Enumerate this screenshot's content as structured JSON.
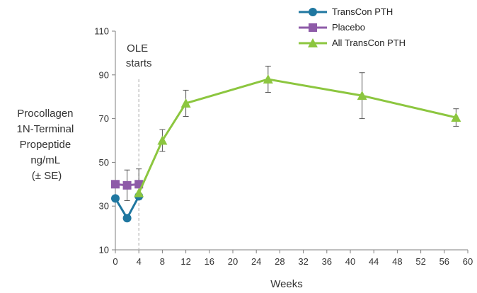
{
  "chart_data": {
    "type": "line",
    "xlabel": "Weeks",
    "ylabel_lines": [
      "Procollagen",
      "1N-Terminal",
      "Propeptide",
      "ng/mL",
      "(± SE)"
    ],
    "xlim": [
      0,
      60
    ],
    "ylim": [
      10,
      110
    ],
    "xticks": [
      "0",
      "4",
      "8",
      "12",
      "16",
      "20",
      "24",
      "28",
      "32",
      "36",
      "40",
      "44",
      "48",
      "52",
      "56",
      "60"
    ],
    "yticks": [
      "10",
      "30",
      "50",
      "70",
      "90",
      "110"
    ],
    "annotation": {
      "lines": [
        "OLE",
        "starts"
      ],
      "x": 4
    },
    "legend_position": "top-right",
    "series": [
      {
        "name": "TransCon PTH",
        "color": "#1f77a0",
        "marker": "circle",
        "points": [
          {
            "x": 0,
            "y": 33.5,
            "err": 0
          },
          {
            "x": 2,
            "y": 24.5,
            "err": 0
          },
          {
            "x": 4,
            "y": 34.5,
            "err": 0
          }
        ]
      },
      {
        "name": "Placebo",
        "color": "#8e5ba8",
        "marker": "square",
        "points": [
          {
            "x": 0,
            "y": 40,
            "err": 0
          },
          {
            "x": 2,
            "y": 39.5,
            "err": 7
          },
          {
            "x": 4,
            "y": 40,
            "err": 7
          }
        ]
      },
      {
        "name": "All TransCon PTH",
        "color": "#8cc63f",
        "marker": "triangle",
        "points": [
          {
            "x": 4,
            "y": 36,
            "err": 0
          },
          {
            "x": 8,
            "y": 60,
            "err": 5
          },
          {
            "x": 12,
            "y": 77,
            "err": 6
          },
          {
            "x": 26,
            "y": 88,
            "err": 6
          },
          {
            "x": 42,
            "y": 80.5,
            "err": 10.5
          },
          {
            "x": 58,
            "y": 70.5,
            "err": 4
          }
        ]
      }
    ]
  }
}
